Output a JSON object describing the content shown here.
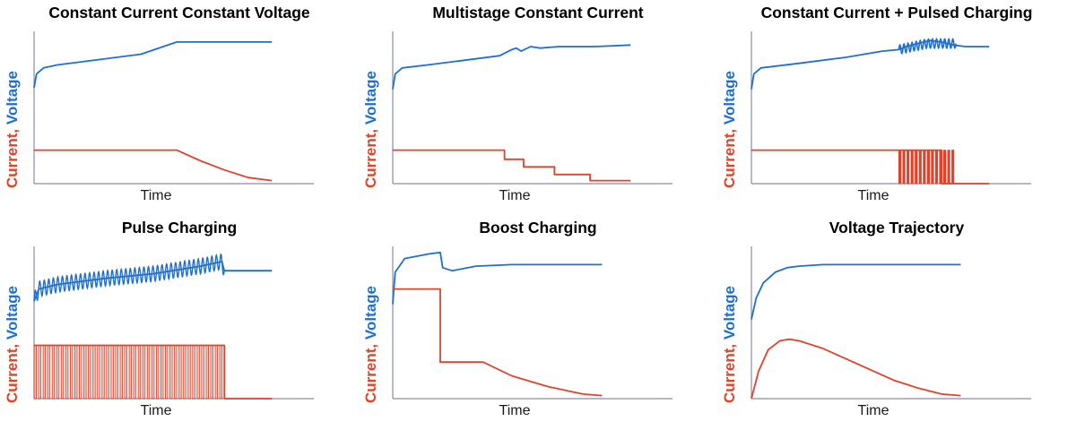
{
  "figure": {
    "colors": {
      "current": "#e0432a",
      "voltage": "#1f6fd0",
      "axis": "#8a8ab0"
    }
  },
  "chart_data": [
    {
      "type": "line",
      "title": "Constant Current Constant Voltage",
      "xlabel": "Time",
      "ylabel_parts": [
        "Current,",
        "Voltage"
      ],
      "grid": false,
      "series": [
        {
          "role": "voltage",
          "x": [
            0,
            0.01,
            0.04,
            0.1,
            0.3,
            0.45,
            0.6,
            1
          ],
          "y": [
            0.63,
            0.72,
            0.76,
            0.78,
            0.82,
            0.85,
            0.93,
            0.93
          ]
        },
        {
          "role": "current",
          "x": [
            0,
            0.6,
            0.7,
            0.8,
            0.9,
            1
          ],
          "y": [
            0.22,
            0.22,
            0.15,
            0.09,
            0.04,
            0.02
          ]
        }
      ]
    },
    {
      "type": "line",
      "title": "Multistage Constant Current",
      "xlabel": "Time",
      "ylabel_parts": [
        "Current,",
        "Voltage"
      ],
      "grid": false,
      "series": [
        {
          "role": "voltage",
          "x": [
            0,
            0.01,
            0.04,
            0.15,
            0.3,
            0.45,
            0.5,
            0.52,
            0.54,
            0.58,
            0.62,
            0.7,
            0.85,
            1
          ],
          "y": [
            0.62,
            0.72,
            0.76,
            0.78,
            0.81,
            0.84,
            0.88,
            0.89,
            0.87,
            0.9,
            0.89,
            0.9,
            0.9,
            0.91
          ]
        },
        {
          "role": "current",
          "x": [
            0,
            0.47,
            0.47,
            0.55,
            0.55,
            0.68,
            0.68,
            0.83,
            0.83,
            1
          ],
          "y": [
            0.22,
            0.22,
            0.16,
            0.16,
            0.11,
            0.11,
            0.06,
            0.06,
            0.02,
            0.02
          ]
        }
      ]
    },
    {
      "type": "line",
      "title": "Constant Current + Pulsed Charging",
      "xlabel": "Time",
      "ylabel_parts": [
        "Current,",
        "Voltage"
      ],
      "grid": false,
      "series": [
        {
          "role": "voltage",
          "x": [
            0,
            0.01,
            0.04,
            0.2,
            0.4,
            0.55,
            0.62,
            0.65,
            0.7,
            0.75,
            0.8,
            0.85,
            0.9,
            1
          ],
          "y": [
            0.62,
            0.72,
            0.76,
            0.79,
            0.83,
            0.87,
            0.88,
            0.9,
            0.92,
            0.94,
            0.93,
            0.91,
            0.9,
            0.9
          ]
        },
        {
          "role": "current",
          "x": [
            0,
            0.62,
            0.62,
            0.8,
            0.8,
            0.84,
            0.84,
            1
          ],
          "y": [
            0.22,
            0.22,
            0.22,
            0.22,
            0.0,
            0.0,
            0.0,
            0.0
          ]
        }
      ],
      "pulse_band": {
        "x_start": 0.62,
        "x_end": 0.86,
        "high": 0.22,
        "low": 0.0
      }
    },
    {
      "type": "line",
      "title": "Pulse Charging",
      "xlabel": "Time",
      "ylabel_parts": [
        "Current,",
        "Voltage"
      ],
      "grid": false,
      "series": [
        {
          "role": "voltage",
          "x": [
            0,
            0.02,
            0.1,
            0.3,
            0.5,
            0.7,
            0.79,
            0.8,
            0.85,
            1
          ],
          "y": [
            0.64,
            0.72,
            0.75,
            0.79,
            0.82,
            0.87,
            0.9,
            0.84,
            0.84,
            0.84
          ]
        },
        {
          "role": "current",
          "x": [
            0,
            0.8,
            0.8,
            1
          ],
          "y": [
            0.35,
            0.35,
            0.0,
            0.0
          ]
        }
      ],
      "pulse_band": {
        "x_start": 0.0,
        "x_end": 0.8,
        "high": 0.35,
        "low": 0.0
      },
      "voltage_ripple": {
        "x_start": 0.0,
        "x_end": 0.8,
        "amplitude": 0.05
      }
    },
    {
      "type": "line",
      "title": "Boost Charging",
      "xlabel": "Time",
      "ylabel_parts": [
        "Current,",
        "Voltage"
      ],
      "grid": false,
      "series": [
        {
          "role": "voltage",
          "x": [
            0,
            0.01,
            0.05,
            0.15,
            0.2,
            0.21,
            0.25,
            0.35,
            0.5,
            0.75,
            0.88
          ],
          "y": [
            0.62,
            0.83,
            0.92,
            0.95,
            0.96,
            0.86,
            0.84,
            0.87,
            0.88,
            0.88,
            0.88
          ]
        },
        {
          "role": "current",
          "x": [
            0,
            0.2,
            0.2,
            0.38,
            0.5,
            0.65,
            0.8,
            0.88
          ],
          "y": [
            0.72,
            0.72,
            0.24,
            0.24,
            0.15,
            0.08,
            0.03,
            0.02
          ]
        }
      ]
    },
    {
      "type": "line",
      "title": "Voltage Trajectory",
      "xlabel": "Time",
      "ylabel_parts": [
        "Current,",
        "Voltage"
      ],
      "grid": false,
      "series": [
        {
          "role": "voltage",
          "x": [
            0,
            0.02,
            0.05,
            0.1,
            0.15,
            0.2,
            0.3,
            0.5,
            0.7,
            0.88
          ],
          "y": [
            0.52,
            0.66,
            0.76,
            0.83,
            0.86,
            0.87,
            0.88,
            0.88,
            0.88,
            0.88
          ]
        },
        {
          "role": "current",
          "x": [
            0,
            0.03,
            0.07,
            0.12,
            0.16,
            0.2,
            0.3,
            0.4,
            0.5,
            0.6,
            0.7,
            0.8,
            0.88
          ],
          "y": [
            0.0,
            0.18,
            0.32,
            0.38,
            0.39,
            0.38,
            0.33,
            0.26,
            0.19,
            0.12,
            0.07,
            0.03,
            0.02
          ]
        }
      ]
    }
  ]
}
